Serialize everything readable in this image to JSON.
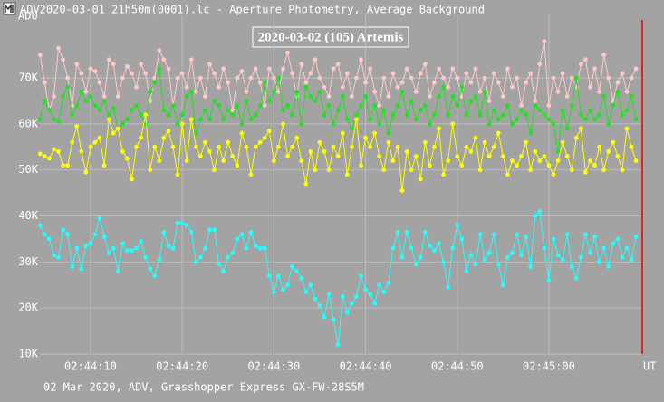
{
  "chart_data": {
    "type": "line",
    "title": "ADV2020-03-01 21h50m(0001).lc - Aperture Photometry, Average Background",
    "subtitle": "2020-03-02 (105) Artemis",
    "footnote": "02 Mar 2020, ADV, Grasshopper Express GX-FW-28S5M",
    "ylabel": "ADU",
    "xlabel": "UT",
    "grid": true,
    "ylim": [
      10000,
      83600
    ],
    "yticks": [
      {
        "value": 10000,
        "label": "10K"
      },
      {
        "value": 20000,
        "label": "20K"
      },
      {
        "value": 30000,
        "label": "30K"
      },
      {
        "value": 40000,
        "label": "40K"
      },
      {
        "value": 50000,
        "label": "50K"
      },
      {
        "value": 60000,
        "label": "60K"
      },
      {
        "value": 70000,
        "label": "70K"
      }
    ],
    "categories": [
      null,
      null,
      null,
      null,
      null,
      null,
      null,
      null,
      null,
      null,
      null,
      "02:44:10",
      null,
      null,
      null,
      null,
      null,
      null,
      null,
      null,
      null,
      null,
      null,
      null,
      null,
      null,
      null,
      null,
      null,
      null,
      null,
      "02:44:20",
      null,
      null,
      null,
      null,
      null,
      null,
      null,
      null,
      null,
      null,
      null,
      null,
      null,
      null,
      null,
      null,
      null,
      null,
      null,
      "02:44:30",
      null,
      null,
      null,
      null,
      null,
      null,
      null,
      null,
      null,
      null,
      null,
      null,
      null,
      null,
      null,
      null,
      null,
      null,
      null,
      "02:44:40",
      null,
      null,
      null,
      null,
      null,
      null,
      null,
      null,
      null,
      null,
      null,
      null,
      null,
      null,
      null,
      null,
      null,
      null,
      null,
      "02:44:50",
      null,
      null,
      null,
      null,
      null,
      null,
      null,
      null,
      null,
      null,
      null,
      null,
      null,
      null,
      null,
      null,
      null,
      null,
      null,
      "02:45:00",
      null,
      null,
      null,
      null,
      null,
      null,
      null,
      null,
      null,
      null,
      null,
      null,
      null,
      null,
      null,
      null,
      null,
      null,
      null
    ],
    "series": [
      {
        "color": "#ffc8c8",
        "values": [
          75000,
          69000,
          63000,
          66000,
          76500,
          74000,
          70000,
          64000,
          73000,
          71000,
          67000,
          72000,
          71500,
          69000,
          66000,
          74000,
          73000,
          66000,
          70000,
          72500,
          71000,
          68000,
          73000,
          71000,
          65000,
          70000,
          76000,
          74000,
          72000,
          64000,
          70000,
          71000,
          68000,
          74000,
          67000,
          70000,
          66000,
          73000,
          71000,
          68000,
          72000,
          69000,
          63000,
          70000,
          71500,
          67000,
          70000,
          72000,
          69000,
          64000,
          72000,
          70000,
          67000,
          72000,
          75500,
          71000,
          66000,
          73000,
          69000,
          71000,
          74000,
          70000,
          68000,
          66000,
          72000,
          73000,
          68000,
          71000,
          66000,
          70000,
          74000,
          69000,
          72000,
          67000,
          64000,
          70000,
          66000,
          71000,
          68000,
          69000,
          72000,
          70000,
          67000,
          71000,
          73000,
          66000,
          69000,
          72000,
          70000,
          68000,
          72000,
          70000,
          66000,
          71000,
          69000,
          72000,
          67000,
          70000,
          65000,
          71000,
          69000,
          66000,
          72000,
          68000,
          70000,
          64000,
          69000,
          71000,
          65000,
          73000,
          78000,
          64000,
          70000,
          67000,
          71000,
          66000,
          70000,
          68000,
          73000,
          74000,
          68000,
          72000,
          67000,
          75000,
          70000,
          65000,
          69000,
          71000,
          67000,
          70000,
          72000
        ]
      },
      {
        "color": "#22e022",
        "values": [
          61000,
          65000,
          63000,
          61000,
          60500,
          66000,
          68000,
          62000,
          64000,
          67000,
          65000,
          66000,
          64000,
          63000,
          65000,
          62000,
          63500,
          59000,
          60000,
          61000,
          63000,
          64000,
          62000,
          60000,
          67000,
          69000,
          72000,
          63000,
          62000,
          64000,
          60000,
          62000,
          66000,
          67000,
          58000,
          61000,
          63000,
          61000,
          65000,
          64000,
          61000,
          63000,
          62000,
          64000,
          60000,
          65000,
          61000,
          62000,
          64000,
          69000,
          65000,
          67000,
          70000,
          63000,
          64000,
          62000,
          67000,
          60000,
          68000,
          66000,
          65000,
          67000,
          62000,
          64000,
          60000,
          63000,
          66000,
          61000,
          59000,
          62000,
          64000,
          66000,
          61000,
          64000,
          60000,
          63000,
          58000,
          62000,
          64000,
          67000,
          62000,
          65000,
          61000,
          63000,
          64000,
          60000,
          62000,
          66000,
          68000,
          62000,
          66000,
          64000,
          68000,
          62000,
          65000,
          66000,
          62000,
          67000,
          60000,
          63000,
          61000,
          62000,
          64000,
          60000,
          61000,
          63000,
          62000,
          58000,
          64000,
          63000,
          62000,
          61000,
          60000,
          54000,
          63000,
          59000,
          64000,
          70000,
          62000,
          61000,
          63000,
          61000,
          62000,
          66000,
          60000,
          64000,
          67000,
          62000,
          63000,
          66000,
          61000
        ]
      },
      {
        "color": "#ffff00",
        "values": [
          53500,
          53000,
          52500,
          54500,
          54000,
          51000,
          51000,
          56000,
          59500,
          54000,
          49500,
          55000,
          56000,
          57000,
          51000,
          61000,
          58000,
          59000,
          54000,
          52500,
          48000,
          55000,
          57000,
          62000,
          50000,
          55000,
          52000,
          57000,
          58500,
          55000,
          49000,
          60000,
          52000,
          61000,
          55000,
          53000,
          56000,
          54000,
          50000,
          55000,
          52000,
          56000,
          53000,
          51000,
          58000,
          55000,
          49000,
          55000,
          56000,
          57000,
          58500,
          52000,
          55000,
          60000,
          53000,
          55000,
          57000,
          52000,
          47000,
          54000,
          50000,
          56000,
          54000,
          50000,
          55000,
          53000,
          58000,
          49000,
          55000,
          61000,
          51000,
          57000,
          55000,
          58000,
          53000,
          50000,
          56000,
          52000,
          55000,
          45500,
          54000,
          50000,
          53000,
          48000,
          56000,
          51000,
          55000,
          59000,
          49000,
          52000,
          60000,
          53000,
          51000,
          55000,
          54000,
          57000,
          50000,
          56000,
          53000,
          55000,
          58000,
          53000,
          49000,
          52000,
          51000,
          53000,
          56000,
          50000,
          54000,
          52000,
          53000,
          51000,
          49000,
          52000,
          56000,
          53000,
          50000,
          57000,
          59000,
          49500,
          52000,
          51000,
          55000,
          50000,
          54000,
          56000,
          53000,
          50000,
          59000,
          55000,
          52000
        ]
      },
      {
        "color": "#22ffff",
        "values": [
          38000,
          36000,
          35000,
          31500,
          31000,
          37000,
          36000,
          29000,
          33000,
          28500,
          33500,
          34000,
          36000,
          39500,
          35500,
          32000,
          33000,
          28000,
          34000,
          32500,
          32500,
          33000,
          34500,
          31000,
          28500,
          27000,
          30500,
          36500,
          33500,
          33000,
          38500,
          38500,
          38000,
          36500,
          30000,
          31000,
          33000,
          37000,
          37000,
          29500,
          28000,
          31000,
          32000,
          35000,
          36000,
          33000,
          36500,
          33500,
          33000,
          33000,
          27000,
          23500,
          27000,
          24000,
          25000,
          29000,
          28000,
          26500,
          23500,
          25000,
          22000,
          20500,
          18000,
          23000,
          17500,
          12000,
          22500,
          19000,
          21000,
          22500,
          27000,
          24000,
          23000,
          21000,
          25000,
          23500,
          25500,
          33000,
          36500,
          31000,
          36500,
          33000,
          29500,
          31000,
          36500,
          33500,
          32500,
          34000,
          30000,
          24500,
          33000,
          38000,
          35000,
          28000,
          31500,
          29500,
          36000,
          30500,
          32000,
          36000,
          29500,
          25000,
          31000,
          32000,
          36000,
          31500,
          35500,
          29000,
          40000,
          41000,
          33000,
          26000,
          35000,
          31500,
          30500,
          36000,
          29000,
          26500,
          31000,
          36000,
          32000,
          35500,
          30000,
          33000,
          29000,
          34000,
          35000,
          31000,
          33000,
          30500,
          35500
        ]
      }
    ]
  }
}
